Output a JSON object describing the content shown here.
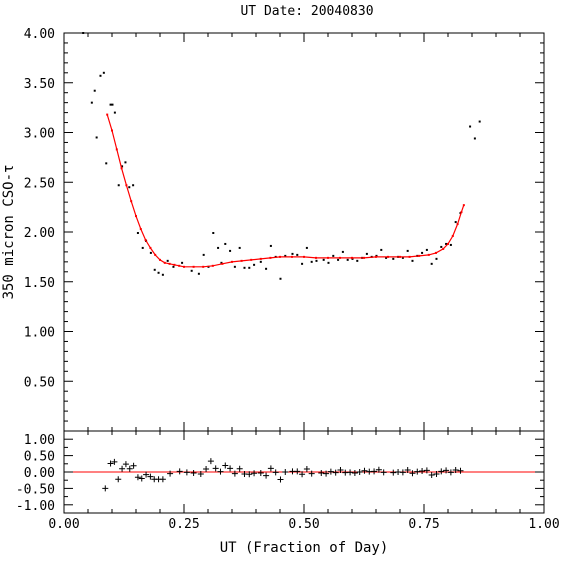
{
  "chart_data": [
    {
      "type": "scatter",
      "panel": "main",
      "title": "UT Date: 20040830",
      "xlabel": "UT (Fraction of Day)",
      "ylabel": "350 micron CSO-τ",
      "xlim": [
        0,
        1
      ],
      "ylim": [
        0,
        4
      ],
      "y_tick_labels": [
        "0.50",
        "1.00",
        "1.50",
        "2.00",
        "2.50",
        "3.00",
        "3.50",
        "4.00"
      ],
      "x_tick_labels": [
        "0.00",
        "0.25",
        "0.50",
        "0.75",
        "1.00"
      ],
      "fit_color": "#ff0000",
      "point_color": "#000000",
      "points": [
        [
          0.04,
          4.0
        ],
        [
          0.058,
          3.3
        ],
        [
          0.064,
          3.42
        ],
        [
          0.068,
          2.95
        ],
        [
          0.076,
          3.57
        ],
        [
          0.083,
          3.6
        ],
        [
          0.088,
          2.69
        ],
        [
          0.097,
          3.28
        ],
        [
          0.101,
          3.28
        ],
        [
          0.106,
          3.2
        ],
        [
          0.114,
          2.47
        ],
        [
          0.121,
          2.66
        ],
        [
          0.128,
          2.7
        ],
        [
          0.136,
          2.45
        ],
        [
          0.144,
          2.47
        ],
        [
          0.154,
          1.99
        ],
        [
          0.164,
          1.84
        ],
        [
          0.171,
          1.91
        ],
        [
          0.181,
          1.79
        ],
        [
          0.189,
          1.62
        ],
        [
          0.197,
          1.59
        ],
        [
          0.206,
          1.57
        ],
        [
          0.216,
          1.71
        ],
        [
          0.228,
          1.65
        ],
        [
          0.246,
          1.69
        ],
        [
          0.266,
          1.61
        ],
        [
          0.281,
          1.58
        ],
        [
          0.291,
          1.77
        ],
        [
          0.301,
          1.65
        ],
        [
          0.311,
          1.99
        ],
        [
          0.321,
          1.84
        ],
        [
          0.328,
          1.69
        ],
        [
          0.336,
          1.88
        ],
        [
          0.346,
          1.81
        ],
        [
          0.356,
          1.65
        ],
        [
          0.366,
          1.84
        ],
        [
          0.376,
          1.64
        ],
        [
          0.386,
          1.64
        ],
        [
          0.396,
          1.67
        ],
        [
          0.41,
          1.7
        ],
        [
          0.421,
          1.63
        ],
        [
          0.431,
          1.86
        ],
        [
          0.441,
          1.75
        ],
        [
          0.451,
          1.53
        ],
        [
          0.461,
          1.76
        ],
        [
          0.476,
          1.78
        ],
        [
          0.486,
          1.77
        ],
        [
          0.496,
          1.68
        ],
        [
          0.506,
          1.84
        ],
        [
          0.516,
          1.7
        ],
        [
          0.526,
          1.71
        ],
        [
          0.541,
          1.72
        ],
        [
          0.551,
          1.69
        ],
        [
          0.561,
          1.76
        ],
        [
          0.571,
          1.72
        ],
        [
          0.581,
          1.8
        ],
        [
          0.591,
          1.72
        ],
        [
          0.601,
          1.73
        ],
        [
          0.611,
          1.71
        ],
        [
          0.621,
          1.74
        ],
        [
          0.631,
          1.78
        ],
        [
          0.641,
          1.75
        ],
        [
          0.651,
          1.76
        ],
        [
          0.661,
          1.82
        ],
        [
          0.671,
          1.74
        ],
        [
          0.686,
          1.73
        ],
        [
          0.696,
          1.75
        ],
        [
          0.706,
          1.74
        ],
        [
          0.716,
          1.81
        ],
        [
          0.726,
          1.71
        ],
        [
          0.736,
          1.76
        ],
        [
          0.746,
          1.79
        ],
        [
          0.756,
          1.82
        ],
        [
          0.766,
          1.68
        ],
        [
          0.776,
          1.73
        ],
        [
          0.786,
          1.85
        ],
        [
          0.796,
          1.88
        ],
        [
          0.806,
          1.87
        ],
        [
          0.816,
          2.1
        ],
        [
          0.826,
          2.19
        ],
        [
          0.846,
          3.06
        ],
        [
          0.856,
          2.94
        ],
        [
          0.866,
          3.11
        ]
      ],
      "fit": [
        [
          0.09,
          3.18
        ],
        [
          0.1,
          3.02
        ],
        [
          0.11,
          2.83
        ],
        [
          0.12,
          2.64
        ],
        [
          0.13,
          2.47
        ],
        [
          0.14,
          2.31
        ],
        [
          0.15,
          2.16
        ],
        [
          0.16,
          2.03
        ],
        [
          0.17,
          1.92
        ],
        [
          0.18,
          1.84
        ],
        [
          0.19,
          1.77
        ],
        [
          0.2,
          1.72
        ],
        [
          0.21,
          1.69
        ],
        [
          0.22,
          1.68
        ],
        [
          0.23,
          1.67
        ],
        [
          0.24,
          1.66
        ],
        [
          0.25,
          1.65
        ],
        [
          0.27,
          1.65
        ],
        [
          0.29,
          1.65
        ],
        [
          0.31,
          1.66
        ],
        [
          0.33,
          1.68
        ],
        [
          0.35,
          1.7
        ],
        [
          0.37,
          1.71
        ],
        [
          0.39,
          1.72
        ],
        [
          0.41,
          1.73
        ],
        [
          0.43,
          1.74
        ],
        [
          0.45,
          1.75
        ],
        [
          0.475,
          1.75
        ],
        [
          0.5,
          1.75
        ],
        [
          0.525,
          1.74
        ],
        [
          0.55,
          1.74
        ],
        [
          0.575,
          1.74
        ],
        [
          0.6,
          1.74
        ],
        [
          0.625,
          1.74
        ],
        [
          0.65,
          1.75
        ],
        [
          0.675,
          1.75
        ],
        [
          0.7,
          1.75
        ],
        [
          0.72,
          1.75
        ],
        [
          0.74,
          1.76
        ],
        [
          0.76,
          1.77
        ],
        [
          0.775,
          1.79
        ],
        [
          0.79,
          1.83
        ],
        [
          0.8,
          1.88
        ],
        [
          0.81,
          1.96
        ],
        [
          0.82,
          2.08
        ],
        [
          0.828,
          2.2
        ],
        [
          0.833,
          2.27
        ]
      ]
    },
    {
      "type": "scatter",
      "panel": "residuals",
      "xlim": [
        0,
        1
      ],
      "ylim": [
        -1.25,
        1.25
      ],
      "y_tick_labels": [
        "1.00",
        "0.50",
        "0.00",
        "-0.50",
        "-1.00"
      ],
      "zero_line_color": "#ff0000",
      "marker": "plus",
      "points": [
        [
          0.086,
          -0.5
        ],
        [
          0.097,
          0.26
        ],
        [
          0.105,
          0.31
        ],
        [
          0.113,
          -0.22
        ],
        [
          0.121,
          0.1
        ],
        [
          0.129,
          0.24
        ],
        [
          0.137,
          0.1
        ],
        [
          0.145,
          0.19
        ],
        [
          0.154,
          -0.16
        ],
        [
          0.162,
          -0.2
        ],
        [
          0.171,
          -0.08
        ],
        [
          0.18,
          -0.14
        ],
        [
          0.188,
          -0.22
        ],
        [
          0.197,
          -0.22
        ],
        [
          0.206,
          -0.22
        ],
        [
          0.221,
          -0.05
        ],
        [
          0.241,
          0.02
        ],
        [
          0.256,
          -0.01
        ],
        [
          0.27,
          -0.03
        ],
        [
          0.285,
          -0.06
        ],
        [
          0.296,
          0.09
        ],
        [
          0.306,
          0.33
        ],
        [
          0.316,
          0.11
        ],
        [
          0.326,
          0.01
        ],
        [
          0.336,
          0.2
        ],
        [
          0.346,
          0.11
        ],
        [
          0.356,
          -0.05
        ],
        [
          0.366,
          0.1
        ],
        [
          0.376,
          -0.06
        ],
        [
          0.386,
          -0.07
        ],
        [
          0.396,
          -0.04
        ],
        [
          0.41,
          -0.03
        ],
        [
          0.421,
          -0.11
        ],
        [
          0.431,
          0.11
        ],
        [
          0.441,
          -0.01
        ],
        [
          0.451,
          -0.23
        ],
        [
          0.461,
          0.0
        ],
        [
          0.476,
          0.02
        ],
        [
          0.486,
          0.02
        ],
        [
          0.496,
          -0.07
        ],
        [
          0.506,
          0.09
        ],
        [
          0.516,
          -0.05
        ],
        [
          0.536,
          -0.03
        ],
        [
          0.546,
          -0.05
        ],
        [
          0.556,
          0.01
        ],
        [
          0.566,
          -0.02
        ],
        [
          0.576,
          0.06
        ],
        [
          0.586,
          -0.02
        ],
        [
          0.596,
          -0.01
        ],
        [
          0.606,
          -0.03
        ],
        [
          0.616,
          0.0
        ],
        [
          0.626,
          0.04
        ],
        [
          0.636,
          0.01
        ],
        [
          0.646,
          0.02
        ],
        [
          0.656,
          0.07
        ],
        [
          0.666,
          -0.01
        ],
        [
          0.686,
          -0.02
        ],
        [
          0.696,
          0.0
        ],
        [
          0.706,
          -0.01
        ],
        [
          0.716,
          0.06
        ],
        [
          0.726,
          -0.04
        ],
        [
          0.736,
          0.01
        ],
        [
          0.746,
          0.03
        ],
        [
          0.756,
          0.05
        ],
        [
          0.766,
          -0.09
        ],
        [
          0.776,
          -0.06
        ],
        [
          0.786,
          0.02
        ],
        [
          0.796,
          0.05
        ],
        [
          0.806,
          -0.01
        ],
        [
          0.816,
          0.06
        ],
        [
          0.826,
          0.04
        ]
      ]
    }
  ]
}
